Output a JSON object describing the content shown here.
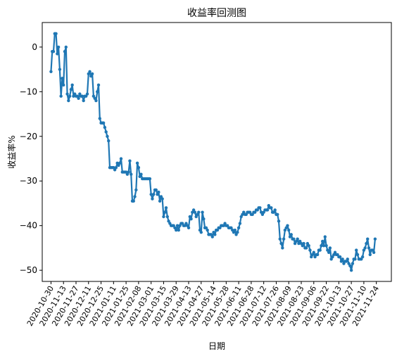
{
  "chart_data": {
    "type": "line",
    "title": "收益率回测图",
    "xlabel": "日期",
    "ylabel": "收益率%",
    "ylim": [
      -52.5,
      5.5
    ],
    "yticks": [
      0,
      -10,
      -20,
      -30,
      -40,
      -50
    ],
    "xlim": [
      -7,
      272
    ],
    "xtick_labels": [
      "2020-10-30",
      "2020-11-13",
      "2020-11-27",
      "2020-12-11",
      "2020-12-25",
      "2021-01-11",
      "2021-01-25",
      "2021-02-08",
      "2021-03-01",
      "2021-03-15",
      "2021-03-29",
      "2021-04-13",
      "2021-04-27",
      "2021-05-14",
      "2021-05-28",
      "2021-06-11",
      "2021-06-28",
      "2021-07-12",
      "2021-07-26",
      "2021-08-09",
      "2021-08-23",
      "2021-09-06",
      "2021-09-22",
      "2021-10-13",
      "2021-10-27",
      "2021-11-10",
      "2021-11-24"
    ],
    "xtick_positions": [
      0,
      10,
      20,
      30,
      40,
      50,
      60,
      70,
      80,
      90,
      100,
      110,
      120,
      130,
      140,
      150,
      160,
      170,
      180,
      190,
      200,
      210,
      220,
      230,
      240,
      250,
      260
    ],
    "grid": false,
    "series": [
      {
        "color": "#1f77b4",
        "values": [
          -5.5,
          -1,
          -1,
          3,
          3,
          -1.5,
          0,
          -5,
          -11,
          -7,
          -8.5,
          -1,
          0,
          -10.5,
          -12,
          -11,
          -9.5,
          -8.5,
          -11,
          -10.5,
          -11,
          -11,
          -11.5,
          -10.5,
          -11,
          -11,
          -12,
          -11,
          -11,
          -10.5,
          -6,
          -5.5,
          -6.5,
          -6,
          -11,
          -11.5,
          -12,
          -10,
          -8.5,
          -16,
          -17,
          -17,
          -17,
          -18,
          -19,
          -20,
          -21,
          -27,
          -27,
          -27,
          -27,
          -27.5,
          -27,
          -26,
          -26.5,
          -26,
          -25,
          -28,
          -28,
          -28,
          -28,
          -28.5,
          -28,
          -25.5,
          -28.5,
          -34.5,
          -34.5,
          -33.5,
          -32,
          -26,
          -27,
          -29,
          -28.5,
          -29.5,
          -29.5,
          -29.5,
          -29.5,
          -29.5,
          -29.5,
          -29.5,
          -33,
          -34,
          -33,
          -32,
          -32,
          -33,
          -32.5,
          -34.5,
          -33.5,
          -34,
          -38,
          -37,
          -36,
          -38,
          -39,
          -39.5,
          -40,
          -40,
          -40,
          -40.5,
          -41,
          -40,
          -41,
          -40,
          -39.5,
          -39.5,
          -40,
          -40,
          -39.5,
          -40,
          -40.5,
          -38,
          -38.5,
          -37,
          -36.5,
          -37,
          -38,
          -37.5,
          -37,
          -41,
          -41.5,
          -37,
          -38.5,
          -40.5,
          -40.5,
          -41,
          -42,
          -42,
          -42,
          -42.5,
          -41.5,
          -42,
          -41,
          -41,
          -40.5,
          -40.5,
          -40,
          -40,
          -40,
          -39.5,
          -40,
          -40,
          -40.5,
          -40.5,
          -40.5,
          -41,
          -41.5,
          -41,
          -42,
          -41.5,
          -40.5,
          -39.5,
          -38,
          -37.5,
          -37,
          -37.5,
          -37.5,
          -37,
          -37,
          -37,
          -37.5,
          -37.5,
          -37,
          -37,
          -36.5,
          -36.5,
          -36,
          -36,
          -37,
          -37.5,
          -37,
          -36.5,
          -36.5,
          -36.5,
          -35.5,
          -36,
          -36,
          -37,
          -37,
          -36.5,
          -37.5,
          -37.5,
          -39,
          -43,
          -44,
          -45,
          -43,
          -41,
          -40.5,
          -40,
          -41,
          -42.5,
          -42,
          -43,
          -43,
          -44,
          -43.5,
          -43,
          -44,
          -43.5,
          -44,
          -44.5,
          -44,
          -45,
          -45,
          -44,
          -44.5,
          -45.5,
          -47,
          -46.5,
          -46,
          -47,
          -46.5,
          -46.5,
          -45.5,
          -45.5,
          -44.5,
          -43.5,
          -44.5,
          -42.5,
          -44.5,
          -45.5,
          -46,
          -45,
          -47.5,
          -47,
          -46.5,
          -46,
          -46.5,
          -46.5,
          -47,
          -47,
          -48,
          -47.5,
          -48.5,
          -48,
          -48,
          -47.5,
          -48.5,
          -49,
          -50,
          -48.5,
          -47.5,
          -47.5,
          -45.5,
          -46.5,
          -47.5,
          -47.5,
          -47.5,
          -47,
          -45.5,
          -45,
          -44,
          -43,
          -45,
          -46.5,
          -45.5,
          -45.5,
          -46,
          -43
        ]
      }
    ]
  }
}
